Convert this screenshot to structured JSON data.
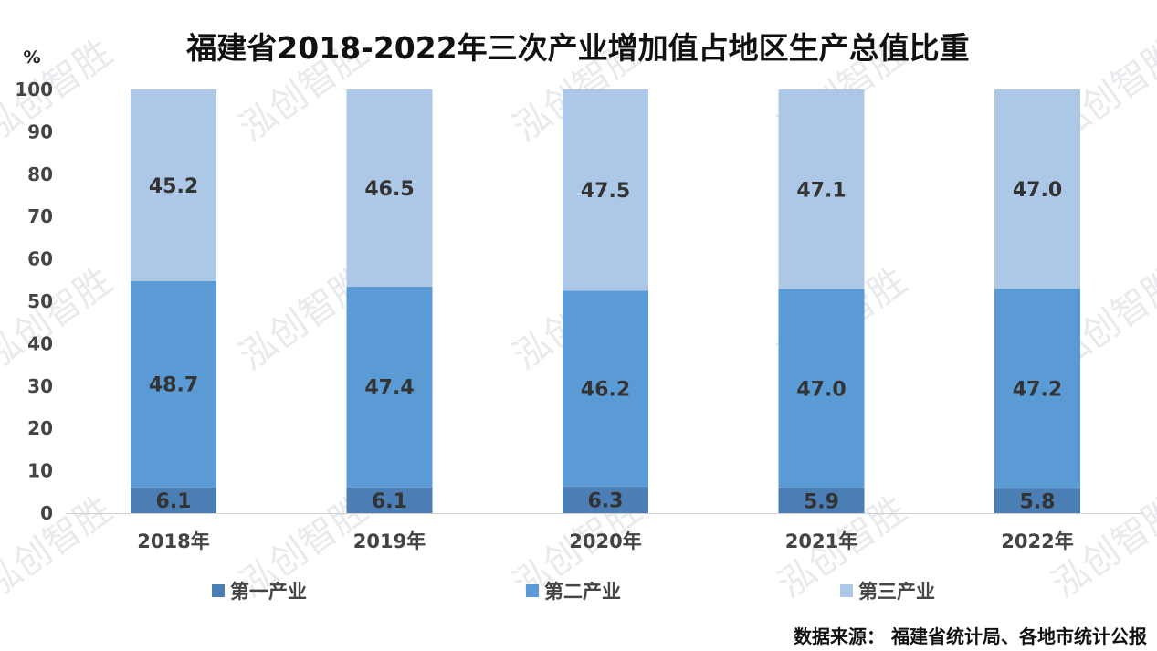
{
  "title": "福建省2018-2022年三次产业增加值占地区生产总值比重",
  "unit": "%",
  "source": "数据来源：   福建省统计局、各地市统计公报",
  "watermark": "泓创智胜",
  "chart_data": {
    "type": "bar",
    "stacked": true,
    "title": "福建省2018-2022年三次产业增加值占地区生产总值比重",
    "xlabel": "",
    "ylabel": "%",
    "ylim": [
      0,
      100
    ],
    "yticks": [
      0,
      10,
      20,
      30,
      40,
      50,
      60,
      70,
      80,
      90,
      100
    ],
    "grid": false,
    "legend": "bottom",
    "categories": [
      "2018年",
      "2019年",
      "2020年",
      "2021年",
      "2022年"
    ],
    "series": [
      {
        "name": "第一产业",
        "color": "#4a7eb5",
        "values": [
          6.1,
          6.1,
          6.3,
          5.9,
          5.8
        ],
        "labels": [
          "6.1",
          "6.1",
          "6.3",
          "5.9",
          "5.8"
        ]
      },
      {
        "name": "第二产业",
        "color": "#5b9bd5",
        "values": [
          48.7,
          47.4,
          46.2,
          47.0,
          47.2
        ],
        "labels": [
          "48.7",
          "47.4",
          "46.2",
          "47.0",
          "47.2"
        ]
      },
      {
        "name": "第三产业",
        "color": "#adc7e7",
        "values": [
          45.2,
          46.5,
          47.5,
          47.1,
          47.0
        ],
        "labels": [
          "45.2",
          "46.5",
          "47.5",
          "47.1",
          "47.0"
        ]
      }
    ]
  }
}
